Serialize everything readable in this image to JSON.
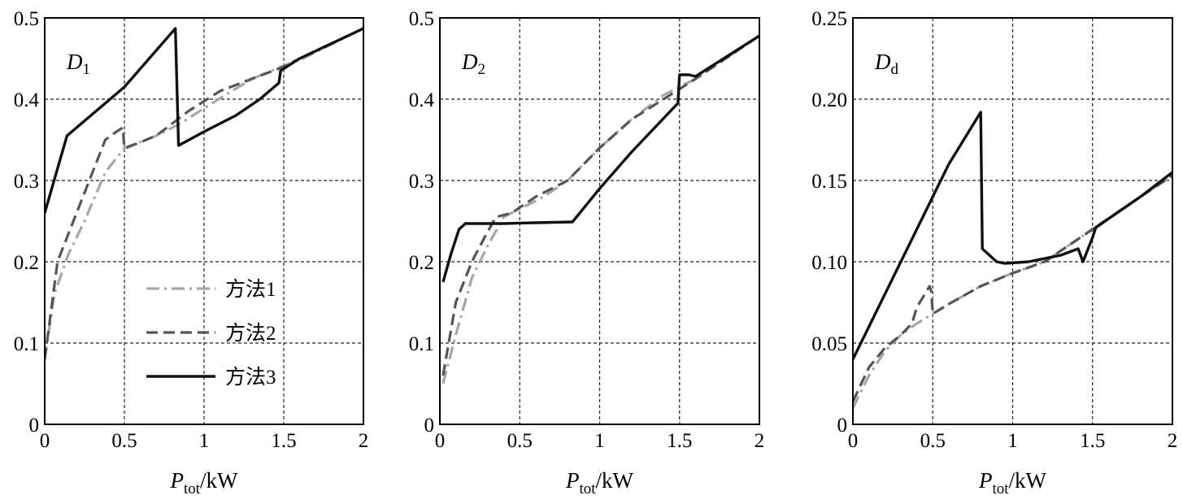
{
  "figure": {
    "styles": {
      "方法1": {
        "color": "#a6a6a6",
        "dash": "dash-dot",
        "width": 3.2
      },
      "方法2": {
        "color": "#555555",
        "dash": "dashed",
        "width": 3.2
      },
      "方法3": {
        "color": "#111111",
        "dash": "solid",
        "width": 3.4
      }
    },
    "legend": {
      "panel": 1,
      "placement": "lower-center",
      "entries": [
        "方法1",
        "方法2",
        "方法3"
      ]
    }
  },
  "chart_data": [
    {
      "type": "line",
      "panel_label": {
        "main": "D",
        "sub": "1",
        "italic_main": true
      },
      "xlabel": {
        "main": "P",
        "sub": "tot",
        "suffix": "/kW"
      },
      "ylabel": "",
      "xlim": [
        0,
        2
      ],
      "ylim": [
        0,
        0.5
      ],
      "xticks": [
        0,
        0.5,
        1,
        1.5,
        2
      ],
      "xtick_labels": [
        "0",
        "0.5",
        "1",
        "1.5",
        "2"
      ],
      "yticks": [
        0,
        0.1,
        0.2,
        0.3,
        0.4,
        0.5
      ],
      "ytick_labels": [
        "0",
        "0.1",
        "0.2",
        "0.3",
        "0.4",
        "0.5"
      ],
      "grid": true,
      "series": [
        {
          "name": "方法1",
          "x": [
            0,
            0.06,
            0.15,
            0.25,
            0.38,
            0.5,
            0.7,
            0.85,
            1.05,
            1.3,
            1.55,
            1.62,
            2.0
          ],
          "y": [
            0.08,
            0.16,
            0.21,
            0.25,
            0.31,
            0.34,
            0.355,
            0.37,
            0.395,
            0.425,
            0.445,
            0.45,
            0.487
          ]
        },
        {
          "name": "方法2",
          "x": [
            0,
            0.08,
            0.2,
            0.3,
            0.38,
            0.45,
            0.49,
            0.5,
            0.51,
            0.7,
            0.9,
            1.1,
            1.3,
            1.5,
            1.6,
            2.0
          ],
          "y": [
            0.08,
            0.2,
            0.26,
            0.31,
            0.35,
            0.36,
            0.365,
            0.34,
            0.34,
            0.355,
            0.385,
            0.41,
            0.425,
            0.44,
            0.45,
            0.487
          ]
        },
        {
          "name": "方法3",
          "x": [
            0,
            0.14,
            0.5,
            0.82,
            0.84,
            1.0,
            1.2,
            1.35,
            1.47,
            1.48,
            1.52,
            1.6,
            2.0
          ],
          "y": [
            0.26,
            0.355,
            0.415,
            0.487,
            0.343,
            0.36,
            0.38,
            0.4,
            0.42,
            0.435,
            0.44,
            0.45,
            0.487
          ]
        }
      ]
    },
    {
      "type": "line",
      "panel_label": {
        "main": "D",
        "sub": "2",
        "italic_main": true
      },
      "xlabel": {
        "main": "P",
        "sub": "tot",
        "suffix": "/kW"
      },
      "ylabel": "",
      "xlim": [
        0,
        2
      ],
      "ylim": [
        0,
        0.5
      ],
      "xticks": [
        0,
        0.5,
        1,
        1.5,
        2
      ],
      "xtick_labels": [
        "0",
        "0.5",
        "1",
        "1.5",
        "2"
      ],
      "yticks": [
        0,
        0.1,
        0.2,
        0.3,
        0.4,
        0.5
      ],
      "ytick_labels": [
        "0",
        "0.1",
        "0.2",
        "0.3",
        "0.4",
        "0.5"
      ],
      "grid": true,
      "series": [
        {
          "name": "方法1",
          "x": [
            0.02,
            0.1,
            0.2,
            0.3,
            0.4,
            0.5,
            0.65,
            0.8,
            1.0,
            1.2,
            1.4,
            1.6,
            2.0
          ],
          "y": [
            0.05,
            0.11,
            0.18,
            0.22,
            0.255,
            0.265,
            0.28,
            0.3,
            0.34,
            0.375,
            0.405,
            0.425,
            0.478
          ]
        },
        {
          "name": "方法2",
          "x": [
            0.02,
            0.1,
            0.2,
            0.28,
            0.35,
            0.45,
            0.6,
            0.8,
            1.0,
            1.2,
            1.4,
            1.6,
            2.0
          ],
          "y": [
            0.06,
            0.15,
            0.2,
            0.23,
            0.255,
            0.26,
            0.28,
            0.3,
            0.34,
            0.375,
            0.4,
            0.425,
            0.478
          ]
        },
        {
          "name": "方法3",
          "x": [
            0.02,
            0.07,
            0.12,
            0.16,
            0.4,
            0.6,
            0.83,
            1.0,
            1.2,
            1.49,
            1.5,
            1.56,
            1.6,
            2.0
          ],
          "y": [
            0.175,
            0.21,
            0.24,
            0.247,
            0.247,
            0.248,
            0.249,
            0.29,
            0.335,
            0.395,
            0.43,
            0.43,
            0.428,
            0.478
          ]
        }
      ]
    },
    {
      "type": "line",
      "panel_label": {
        "main": "D",
        "sub": "d",
        "italic_main": true
      },
      "xlabel": {
        "main": "P",
        "sub": "tot",
        "suffix": "/kW"
      },
      "ylabel": "",
      "xlim": [
        0,
        2
      ],
      "ylim": [
        0,
        0.25
      ],
      "xticks": [
        0,
        0.5,
        1,
        1.5,
        2
      ],
      "xtick_labels": [
        "0",
        "0.5",
        "1",
        "1.5",
        "2"
      ],
      "yticks": [
        0,
        0.05,
        0.1,
        0.15,
        0.2,
        0.25
      ],
      "ytick_labels": [
        "0",
        "0.05",
        "0.10",
        "0.15",
        "0.20",
        "0.25"
      ],
      "grid": true,
      "series": [
        {
          "name": "方法1",
          "x": [
            0,
            0.1,
            0.2,
            0.3,
            0.4,
            0.5,
            0.6,
            0.8,
            1.0,
            1.2,
            1.5,
            1.8,
            2.0
          ],
          "y": [
            0.01,
            0.03,
            0.045,
            0.055,
            0.062,
            0.068,
            0.074,
            0.085,
            0.093,
            0.1,
            0.12,
            0.14,
            0.153
          ]
        },
        {
          "name": "方法2",
          "x": [
            0,
            0.1,
            0.2,
            0.3,
            0.37,
            0.4,
            0.45,
            0.48,
            0.49,
            0.5,
            0.6,
            0.8,
            1.0,
            1.2,
            1.5,
            1.8,
            2.0
          ],
          "y": [
            0.014,
            0.035,
            0.047,
            0.055,
            0.062,
            0.072,
            0.08,
            0.085,
            0.082,
            0.068,
            0.074,
            0.085,
            0.093,
            0.1,
            0.12,
            0.14,
            0.153
          ]
        },
        {
          "name": "方法3",
          "x": [
            0,
            0.2,
            0.4,
            0.6,
            0.8,
            0.81,
            0.9,
            0.95,
            1.1,
            1.3,
            1.41,
            1.44,
            1.5,
            1.52,
            1.8,
            2.0
          ],
          "y": [
            0.04,
            0.08,
            0.12,
            0.16,
            0.192,
            0.108,
            0.1,
            0.099,
            0.1,
            0.104,
            0.108,
            0.1,
            0.115,
            0.121,
            0.14,
            0.155
          ]
        }
      ]
    }
  ]
}
